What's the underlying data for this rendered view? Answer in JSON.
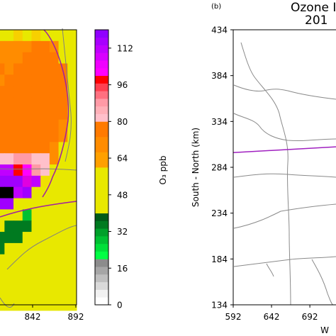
{
  "chart_data": [
    {
      "type": "heatmap",
      "panel": "(a)",
      "xlabel": "",
      "ylabel": "",
      "x_ticks": [
        842,
        892
      ],
      "x_tick_labels": [
        "842",
        "892"
      ],
      "xlim": [
        792,
        892
      ],
      "ylim": [
        134,
        434
      ],
      "grid_cell_km": 12,
      "rows_top_to_bottom": [
        [
          44,
          44,
          52,
          44,
          52,
          44,
          44,
          44,
          44
        ],
        [
          64,
          64,
          64,
          64,
          72,
          72,
          64,
          44,
          44
        ],
        [
          64,
          64,
          64,
          72,
          72,
          72,
          72,
          44,
          44
        ],
        [
          72,
          64,
          72,
          72,
          72,
          72,
          72,
          72,
          44
        ],
        [
          64,
          72,
          72,
          72,
          72,
          72,
          72,
          72,
          44
        ],
        [
          72,
          72,
          72,
          72,
          72,
          72,
          72,
          72,
          44
        ],
        [
          72,
          72,
          72,
          72,
          72,
          72,
          72,
          72,
          44
        ],
        [
          72,
          72,
          72,
          72,
          72,
          72,
          72,
          72,
          44
        ],
        [
          72,
          72,
          72,
          72,
          72,
          72,
          72,
          64,
          44
        ],
        [
          72,
          72,
          72,
          72,
          72,
          72,
          72,
          64,
          44
        ],
        [
          72,
          72,
          72,
          72,
          72,
          72,
          64,
          44,
          44
        ],
        [
          84,
          84,
          88,
          88,
          84,
          84,
          64,
          44,
          44
        ],
        [
          112,
          112,
          96,
          108,
          88,
          84,
          44,
          44,
          44
        ],
        [
          120,
          120,
          120,
          100,
          112,
          48,
          44,
          44,
          44
        ],
        [
          112,
          120,
          112,
          120,
          44,
          44,
          44,
          44,
          44
        ],
        [
          120,
          120,
          44,
          44,
          44,
          44,
          44,
          44,
          44
        ],
        [
          44,
          44,
          44,
          30,
          44,
          44,
          44,
          44,
          44
        ],
        [
          44,
          28,
          28,
          28,
          44,
          44,
          44,
          44,
          44
        ],
        [
          28,
          28,
          28,
          44,
          44,
          44,
          44,
          44,
          44
        ],
        [
          28,
          44,
          44,
          44,
          44,
          44,
          44,
          44,
          44
        ],
        [
          44,
          44,
          44,
          44,
          44,
          44,
          44,
          44,
          44
        ],
        [
          44,
          44,
          44,
          44,
          44,
          44,
          44,
          44,
          44
        ],
        [
          44,
          44,
          44,
          44,
          44,
          44,
          44,
          44,
          44
        ],
        [
          44,
          44,
          44,
          44,
          44,
          44,
          44,
          44,
          44
        ],
        [
          44,
          44,
          44,
          44,
          44,
          44,
          44,
          44,
          44
        ]
      ],
      "black_cells_row_col": [
        [
          14,
          0
        ],
        [
          14,
          1
        ]
      ],
      "note_cells": "O3 values in ppb per grid cell"
    },
    {
      "type": "colorbar",
      "label": "O₃ ppb",
      "range": [
        0,
        120
      ],
      "ticks": [
        0,
        16,
        32,
        48,
        64,
        80,
        96,
        112
      ],
      "tick_labels": [
        "0",
        "16",
        "32",
        "48",
        "64",
        "80",
        "96",
        "112"
      ],
      "colors_bottom_to_top": [
        "#ffffff",
        "#f2f2f2",
        "#d9d9d9",
        "#bfbfbf",
        "#a6a6a6",
        "#8c8c8c",
        "#00ff44",
        "#00e03a",
        "#00c032",
        "#00a02a",
        "#007a20",
        "#005a18",
        "#e8e800",
        "#e8e800",
        "#e8e800",
        "#e8e800",
        "#e8e800",
        "#e8e800",
        "#ffa000",
        "#ffa000",
        "#ff8c00",
        "#ff8c00",
        "#ff7a00",
        "#ff7a00",
        "#ffc0cb",
        "#ffb0b8",
        "#ff9aa6",
        "#ff7080",
        "#ff4050",
        "#ff0000",
        "#ff00ff",
        "#f000ff",
        "#d800ff",
        "#c000ff",
        "#a800ff",
        "#9000ff"
      ]
    },
    {
      "type": "map",
      "panel": "(b)",
      "title_line1": "Ozone I",
      "title_line2": "201",
      "xlabel": "W",
      "ylabel": "South - North (km)",
      "x_ticks": [
        592,
        642,
        692
      ],
      "x_tick_labels": [
        "592",
        "642",
        "692"
      ],
      "y_ticks": [
        134,
        184,
        234,
        284,
        334,
        384,
        434
      ],
      "y_tick_labels": [
        "134",
        "184",
        "234",
        "284",
        "334",
        "384",
        "434"
      ],
      "xlim": [
        592,
        740
      ],
      "ylim": [
        134,
        434
      ],
      "purple_line": [
        [
          592,
          300
        ],
        [
          740,
          307
        ]
      ]
    }
  ],
  "colors": {
    "road": "#808080",
    "boundary": "#a020a0",
    "cell_colors": {
      "28": "#007a20",
      "30": "#00c032",
      "44": "#e8e800",
      "48": "#f0e000",
      "52": "#f7d000",
      "64": "#ff8c00",
      "72": "#ff7a00",
      "84": "#ffc0cb",
      "88": "#ff9aa6",
      "96": "#ff0000",
      "100": "#e000e0",
      "108": "#ff00ff",
      "112": "#c000ff",
      "120": "#a000ff"
    }
  }
}
